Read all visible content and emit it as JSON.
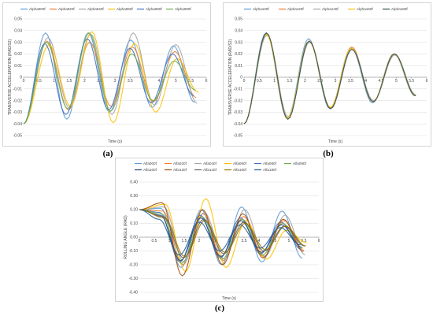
{
  "captions": [
    "(a)",
    "(b)",
    "(c)"
  ],
  "chart_data": [
    {
      "type": "line",
      "panel": "a",
      "xlabel": "Time (s)",
      "ylabel": "TRANSVERSE ACCELERATION (RAD/S2)",
      "xlim": [
        0,
        6
      ],
      "ylim": [
        -0.05,
        0.05
      ],
      "x_ticks": [
        "0",
        "0.5",
        "1",
        "1.5",
        "2",
        "2.5",
        "3",
        "3.5",
        "4",
        "4.5",
        "5",
        "5.5",
        "6"
      ],
      "y_ticks": [
        "0.05",
        "0.04",
        "0.03",
        "0.02",
        "0.01",
        "0",
        "-0.01",
        "-0.02",
        "-0.03",
        "-0.04",
        "-0.05"
      ],
      "legend_position": "top",
      "series": [
        {
          "name": "Alpha000f",
          "color": "#5b9bd5",
          "peaks": [
            0.038,
            0.038,
            0.032,
            0.027
          ],
          "troughs": [
            -0.036,
            -0.03,
            -0.026
          ],
          "phase": 0.0
        },
        {
          "name": "Alpha020f",
          "color": "#ed7d31",
          "peaks": [
            0.031,
            0.03,
            0.026,
            0.022
          ],
          "troughs": [
            -0.028,
            -0.025,
            -0.021
          ],
          "phase": 0.05
        },
        {
          "name": "Alpha040f",
          "color": "#a5a5a5",
          "peaks": [
            0.034,
            0.037,
            0.038,
            0.028
          ],
          "troughs": [
            -0.026,
            -0.032,
            -0.024
          ],
          "phase": 0.08
        },
        {
          "name": "Alpha060f",
          "color": "#ffc000",
          "peaks": [
            0.028,
            0.039,
            0.029,
            0.016
          ],
          "troughs": [
            -0.025,
            -0.039,
            -0.03
          ],
          "phase": 0.12
        },
        {
          "name": "Alpha080f",
          "color": "#4472c4",
          "peaks": [
            0.029,
            0.033,
            0.025,
            0.02
          ],
          "troughs": [
            -0.032,
            -0.028,
            -0.022
          ],
          "phase": -0.03
        },
        {
          "name": "Alpha090f",
          "color": "#70ad47",
          "peaks": [
            0.03,
            0.038,
            0.02,
            0.014
          ],
          "troughs": [
            -0.027,
            -0.029,
            -0.02
          ],
          "phase": 0.03
        }
      ],
      "start_value": -0.04,
      "period": 1.4
    },
    {
      "type": "line",
      "panel": "b",
      "xlabel": "Time (s)",
      "ylabel": "TRANSVERSE ACCELERATION (RAD/S2)",
      "xlim": [
        0,
        6
      ],
      "ylim": [
        -0.05,
        0.05
      ],
      "x_ticks": [
        "0",
        "0.5",
        "1",
        "1.5",
        "2",
        "2.5",
        "3",
        "3.5",
        "4",
        "4.5",
        "5",
        "5.5",
        "6"
      ],
      "y_ticks": [
        "0.05",
        "0.04",
        "0.03",
        "0.02",
        "0.01",
        "0",
        "-0.01",
        "-0.02",
        "-0.03",
        "-0.04",
        "-0.05"
      ],
      "legend_position": "top",
      "series": [
        {
          "name": "Alpha100f",
          "color": "#5b9bd5",
          "peaks": [
            0.038,
            0.033,
            0.025,
            0.02
          ],
          "troughs": [
            -0.035,
            -0.027,
            -0.022
          ],
          "phase": 0.0
        },
        {
          "name": "Alpha120f",
          "color": "#ed7d31",
          "peaks": [
            0.037,
            0.031,
            0.026,
            0.02
          ],
          "troughs": [
            -0.036,
            -0.026,
            -0.021
          ],
          "phase": 0.02
        },
        {
          "name": "Alpha140f",
          "color": "#a5a5a5",
          "peaks": [
            0.036,
            0.03,
            0.024,
            0.019
          ],
          "troughs": [
            -0.034,
            -0.027,
            -0.02
          ],
          "phase": 0.03
        },
        {
          "name": "Alpha160f",
          "color": "#ffc000",
          "peaks": [
            0.037,
            0.031,
            0.025,
            0.02
          ],
          "troughs": [
            -0.035,
            -0.026,
            -0.021
          ],
          "phase": 0.01
        },
        {
          "name": "Alpha180f",
          "color": "#2f4f4f",
          "peaks": [
            0.038,
            0.031,
            0.024,
            0.02
          ],
          "troughs": [
            -0.036,
            -0.027,
            -0.021
          ],
          "phase": 0.02
        }
      ],
      "start_value": -0.04,
      "period": 1.4
    },
    {
      "type": "line",
      "panel": "c",
      "xlabel": "Time (s)",
      "ylabel": "ROLLING ANGLE (RAD)",
      "xlim": [
        0,
        6
      ],
      "ylim": [
        -0.4,
        0.4
      ],
      "x_ticks": [
        "0",
        "0.5",
        "1",
        "1.5",
        "2",
        "2.5",
        "3",
        "3.5",
        "4",
        "4.5",
        "5",
        "5.5",
        "6"
      ],
      "y_ticks": [
        "0.40",
        "0.30",
        "0.20",
        "0.10",
        "0.00",
        "-0.10",
        "-0.20",
        "-0.30",
        "-0.40"
      ],
      "legend_position": "top",
      "series": [
        {
          "name": "Alfa000f",
          "color": "#5b9bd5",
          "peaks": [
            0.21,
            0.2,
            0.22,
            0.19
          ],
          "troughs": [
            -0.22,
            -0.2,
            -0.18
          ],
          "phase": 0.0
        },
        {
          "name": "Alfa020f",
          "color": "#ed7d31",
          "peaks": [
            0.19,
            0.17,
            0.15,
            0.12
          ],
          "troughs": [
            -0.2,
            -0.17,
            -0.14
          ],
          "phase": 0.06
        },
        {
          "name": "Alfa040f",
          "color": "#a5a5a5",
          "peaks": [
            0.22,
            0.18,
            0.2,
            0.16
          ],
          "troughs": [
            -0.18,
            -0.16,
            -0.14
          ],
          "phase": 0.1
        },
        {
          "name": "Alfa060f",
          "color": "#ffc000",
          "peaks": [
            0.24,
            0.28,
            0.12,
            0.05
          ],
          "troughs": [
            -0.25,
            -0.22,
            -0.16
          ],
          "phase": 0.15
        },
        {
          "name": "Alfa080f",
          "color": "#4472c4",
          "peaks": [
            0.18,
            0.16,
            0.14,
            0.11
          ],
          "troughs": [
            -0.18,
            -0.15,
            -0.12
          ],
          "phase": -0.04
        },
        {
          "name": "Alfa090f",
          "color": "#70ad47",
          "peaks": [
            0.17,
            0.15,
            0.13,
            0.1
          ],
          "troughs": [
            -0.19,
            -0.16,
            -0.13
          ],
          "phase": 0.02
        },
        {
          "name": "Alfa100f",
          "color": "#264478",
          "peaks": [
            0.16,
            0.14,
            0.12,
            0.09
          ],
          "troughs": [
            -0.17,
            -0.14,
            -0.11
          ],
          "phase": -0.02
        },
        {
          "name": "Alfa120f",
          "color": "#9e480e",
          "peaks": [
            0.25,
            0.2,
            0.17,
            0.13
          ],
          "troughs": [
            -0.28,
            -0.2,
            -0.15
          ],
          "phase": 0.04
        },
        {
          "name": "Alfa140f",
          "color": "#636363",
          "peaks": [
            0.15,
            0.13,
            0.11,
            0.08
          ],
          "troughs": [
            -0.15,
            -0.12,
            -0.1
          ],
          "phase": 0.08
        },
        {
          "name": "Alfa160f",
          "color": "#997300",
          "peaks": [
            0.14,
            0.12,
            0.1,
            0.08
          ],
          "troughs": [
            -0.14,
            -0.11,
            -0.09
          ],
          "phase": 0.12
        },
        {
          "name": "Alfa180f",
          "color": "#255e91",
          "peaks": [
            0.13,
            0.11,
            0.09,
            0.07
          ],
          "troughs": [
            -0.13,
            -0.1,
            -0.08
          ],
          "phase": -0.06
        }
      ],
      "start_value": 0.2,
      "period": 1.35
    }
  ]
}
